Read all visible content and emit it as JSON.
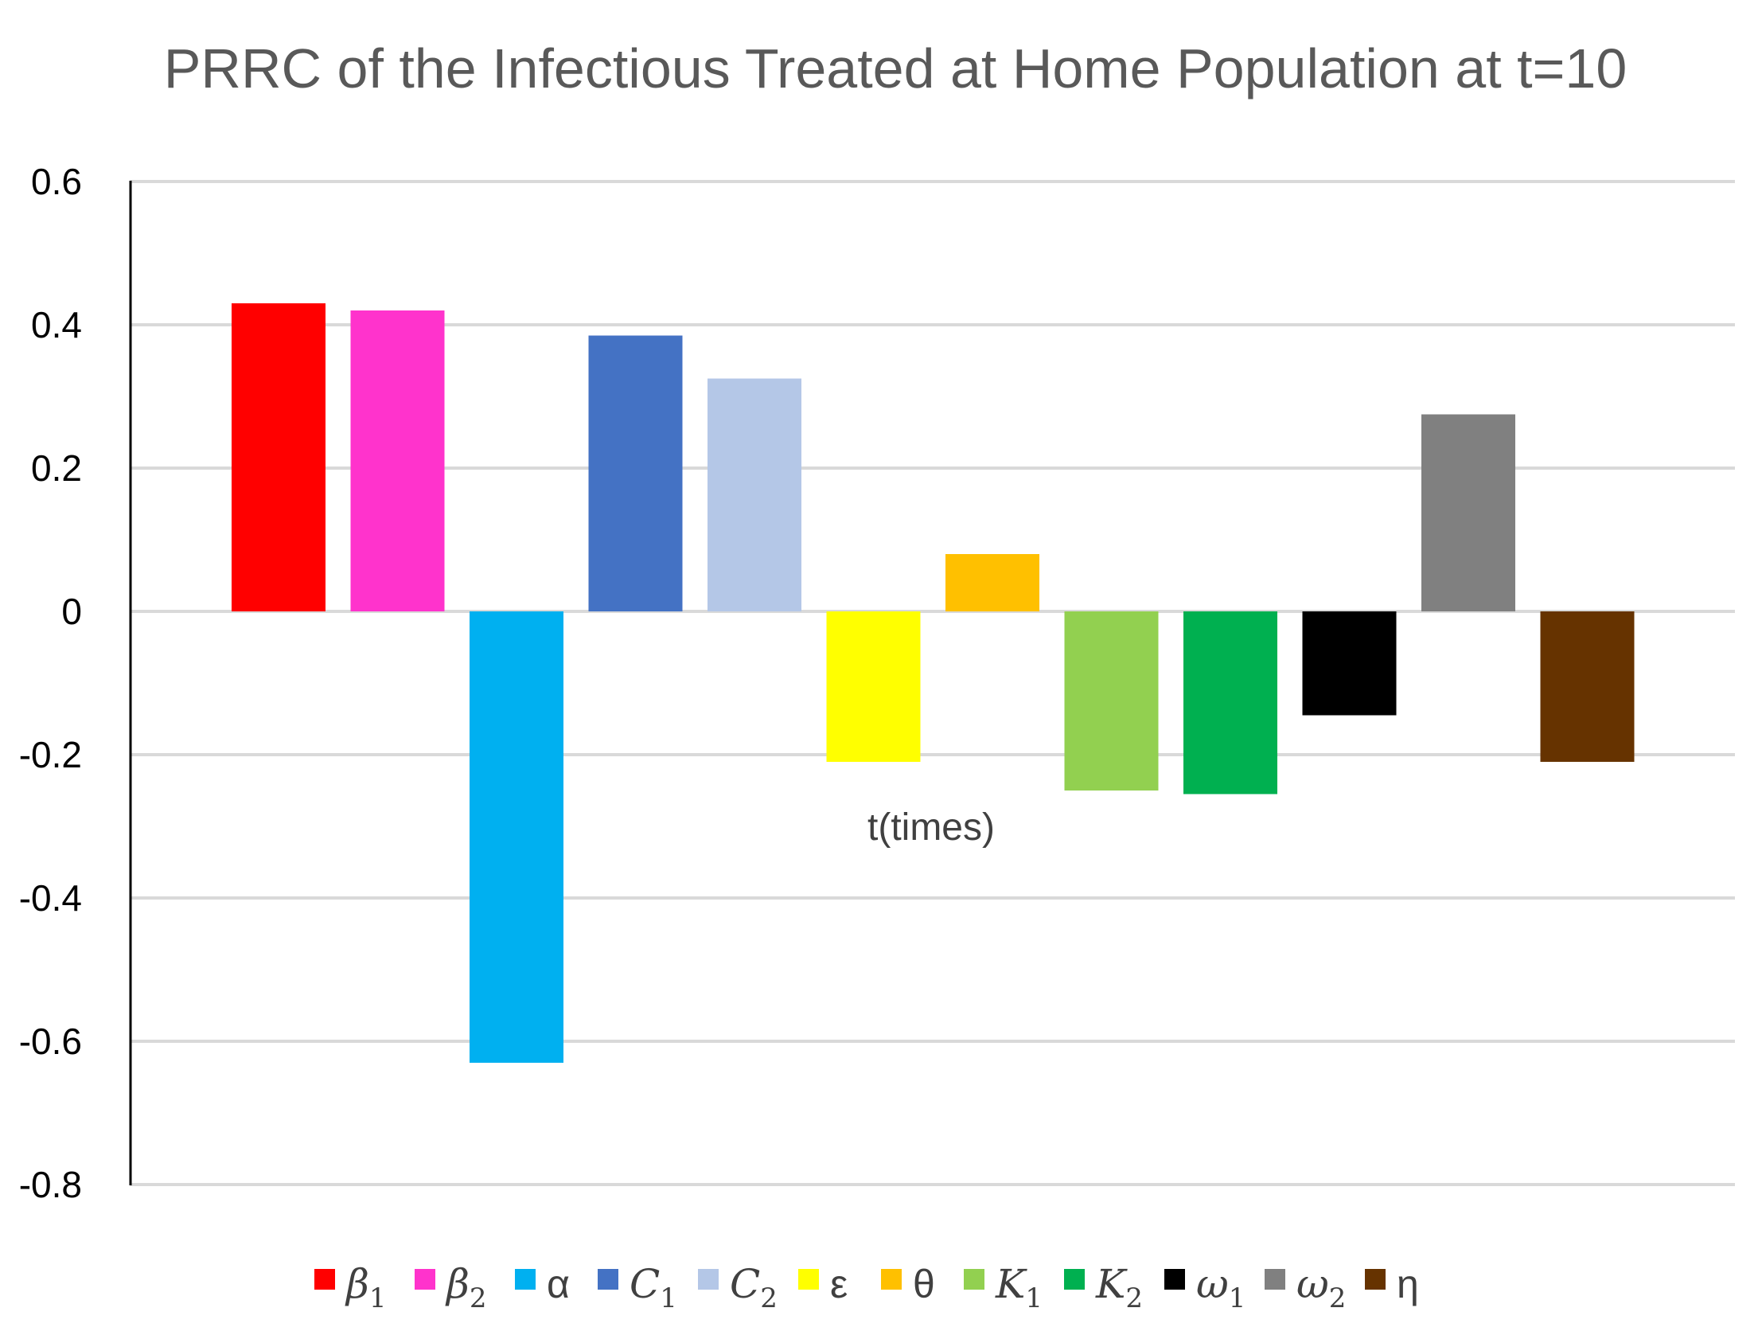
{
  "chart_data": {
    "type": "bar",
    "title": "PRRC of the Infectious Treated at Home Population at t=10",
    "xlabel": "t(times)",
    "ylabel": "",
    "ylim": [
      -0.8,
      0.6
    ],
    "yticks": [
      0.6,
      0.4,
      0.2,
      0,
      -0.2,
      -0.4,
      -0.6,
      -0.8
    ],
    "ytick_labels": [
      "0.6",
      "0.4",
      "0.2",
      "0",
      "-0.2",
      "-0.4",
      "-0.6",
      "-0.8"
    ],
    "grid": true,
    "legend_position": "bottom",
    "series": [
      {
        "name": "β1",
        "symbol": "β",
        "sub": "1",
        "italic": true,
        "value": 0.43,
        "color": "#FF0000"
      },
      {
        "name": "β2",
        "symbol": "β",
        "sub": "2",
        "italic": true,
        "value": 0.42,
        "color": "#FF33CC"
      },
      {
        "name": "α",
        "symbol": "α",
        "sub": "",
        "italic": false,
        "value": -0.63,
        "color": "#00B0F0"
      },
      {
        "name": "C1",
        "symbol": "C",
        "sub": "1",
        "italic": true,
        "value": 0.385,
        "color": "#4472C4"
      },
      {
        "name": "C2",
        "symbol": "C",
        "sub": "2",
        "italic": true,
        "value": 0.325,
        "color": "#B4C7E7"
      },
      {
        "name": "ε",
        "symbol": "ε",
        "sub": "",
        "italic": false,
        "value": -0.21,
        "color": "#FFFF00"
      },
      {
        "name": "θ",
        "symbol": "θ",
        "sub": "",
        "italic": false,
        "value": 0.08,
        "color": "#FFC000"
      },
      {
        "name": "K1",
        "symbol": "K",
        "sub": "1",
        "italic": true,
        "value": -0.25,
        "color": "#92D050"
      },
      {
        "name": "K2",
        "symbol": "K",
        "sub": "2",
        "italic": true,
        "value": -0.255,
        "color": "#00B050"
      },
      {
        "name": "ω1",
        "symbol": "ω",
        "sub": "1",
        "italic": true,
        "value": -0.145,
        "color": "#000000"
      },
      {
        "name": "ω2",
        "symbol": "ω",
        "sub": "2",
        "italic": true,
        "value": 0.275,
        "color": "#808080"
      },
      {
        "name": "η",
        "symbol": "η",
        "sub": "",
        "italic": false,
        "value": -0.21,
        "color": "#663300"
      }
    ]
  }
}
